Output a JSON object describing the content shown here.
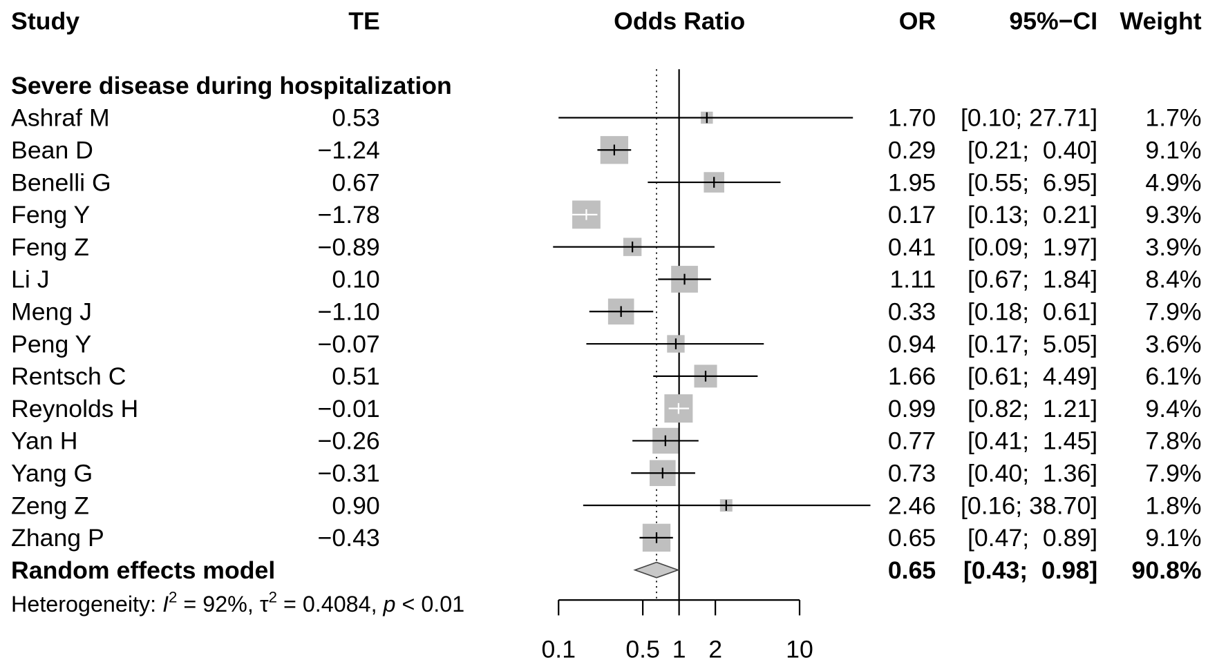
{
  "chart_data": {
    "type": "forest",
    "headers": {
      "study": "Study",
      "te": "TE",
      "plot": "Odds Ratio",
      "or": "OR",
      "ci": "95%−CI",
      "weight": "Weight"
    },
    "group": "Severe disease during hospitalization",
    "studies": [
      "Ashraf M",
      "Bean D",
      "Benelli G",
      "Feng Y",
      "Feng Z",
      "Li J",
      "Meng J",
      "Peng Y",
      "Rentsch C",
      "Reynolds H",
      "Yan H",
      "Yang G",
      "Zeng Z",
      "Zhang P"
    ],
    "te_labels": [
      "0.53",
      "−1.24",
      "0.67",
      "−1.78",
      "−0.89",
      "0.10",
      "−1.10",
      "−0.07",
      "0.51",
      "−0.01",
      "−0.26",
      "−0.31",
      "0.90",
      "−0.43"
    ],
    "values": [
      1.7,
      0.29,
      1.95,
      0.17,
      0.41,
      1.11,
      0.33,
      0.94,
      1.66,
      0.99,
      0.77,
      0.73,
      2.46,
      0.65
    ],
    "value_labels": [
      "1.70",
      "0.29",
      "1.95",
      "0.17",
      "0.41",
      "1.11",
      "0.33",
      "0.94",
      "1.66",
      "0.99",
      "0.77",
      "0.73",
      "2.46",
      "0.65"
    ],
    "lower": [
      0.1,
      0.21,
      0.55,
      0.13,
      0.09,
      0.67,
      0.18,
      0.17,
      0.61,
      0.82,
      0.41,
      0.4,
      0.16,
      0.47
    ],
    "upper": [
      27.71,
      0.4,
      6.95,
      0.21,
      1.97,
      1.84,
      0.61,
      5.05,
      4.49,
      1.21,
      1.45,
      1.36,
      38.7,
      0.89
    ],
    "ci_labels": [
      "[0.10; 27.71]",
      "[0.21;  0.40]",
      "[0.55;  6.95]",
      "[0.13;  0.21]",
      "[0.09;  1.97]",
      "[0.67;  1.84]",
      "[0.18;  0.61]",
      "[0.17;  5.05]",
      "[0.61;  4.49]",
      "[0.82;  1.21]",
      "[0.41;  1.45]",
      "[0.40;  1.36]",
      "[0.16; 38.70]",
      "[0.47;  0.89]"
    ],
    "weights": [
      1.7,
      9.1,
      4.9,
      9.3,
      3.9,
      8.4,
      7.9,
      3.6,
      6.1,
      9.4,
      7.8,
      7.9,
      1.8,
      9.1
    ],
    "weight_labels": [
      "1.7%",
      "9.1%",
      "4.9%",
      "9.3%",
      "3.9%",
      "8.4%",
      "7.9%",
      "3.6%",
      "6.1%",
      "9.4%",
      "7.8%",
      "7.9%",
      "1.8%",
      "9.1%"
    ],
    "pooled": {
      "name": "Random effects model",
      "value": 0.65,
      "value_label": "0.65",
      "lower": 0.43,
      "upper": 0.98,
      "ci_label": "[0.43;  0.98]",
      "weight": 90.8,
      "weight_label": "90.8%"
    },
    "heterogeneity": [
      "Heterogeneity: ",
      "I",
      "2",
      " = 92%, ",
      "τ",
      "2",
      " = 0.4084, ",
      "p",
      " < 0.01"
    ],
    "log_scale": true,
    "xlim": [
      0.1,
      10
    ],
    "xticks": [
      0.1,
      0.5,
      1,
      2,
      10
    ],
    "box_color": "#bfbfbf",
    "diamond_color": "#c8c8c8"
  }
}
